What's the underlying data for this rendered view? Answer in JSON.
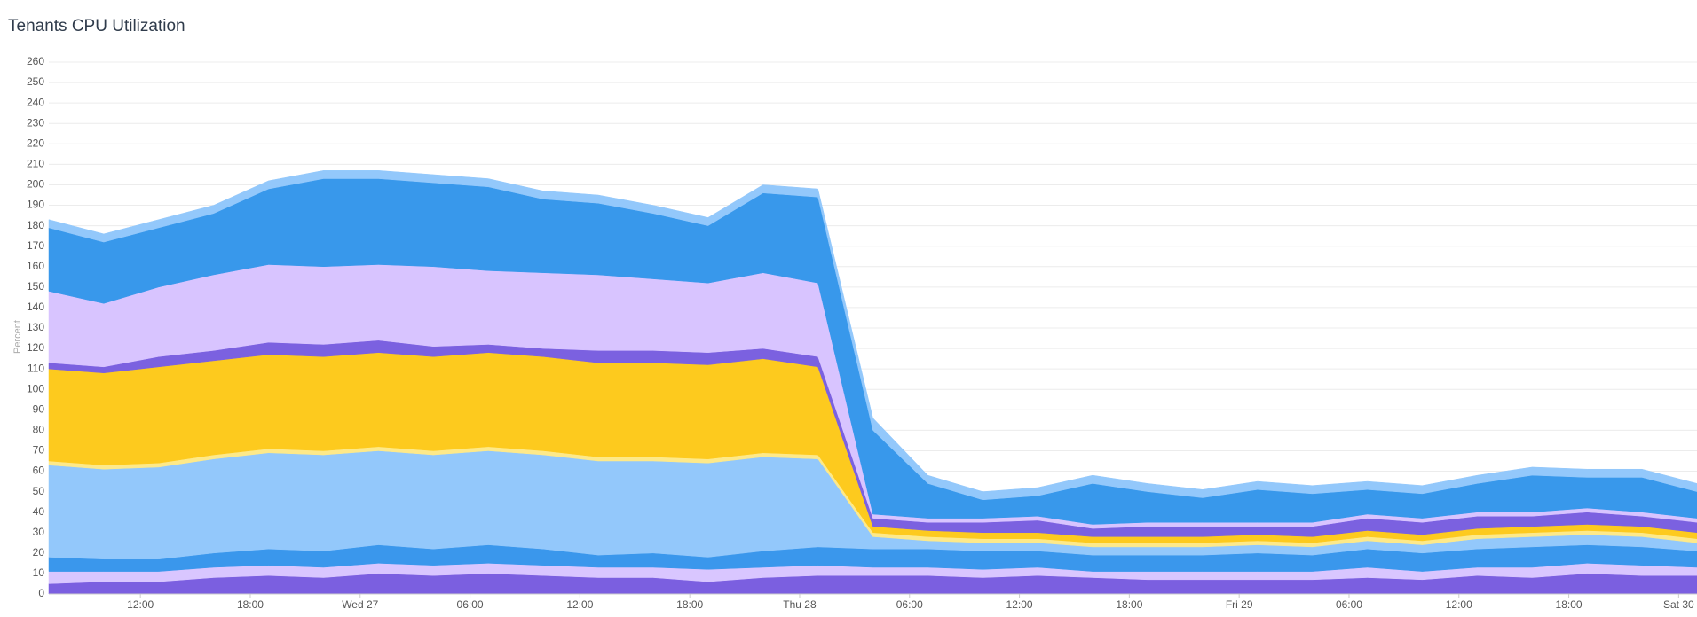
{
  "chart_data": {
    "type": "stacked_area",
    "title": "Tenants CPU Utilization",
    "y_label": "Percent",
    "x": [
      -17,
      -14,
      -11,
      -8,
      -5,
      -2,
      1,
      4,
      7,
      10,
      13,
      16,
      19,
      22,
      25,
      28,
      31,
      34,
      37,
      40,
      43,
      46,
      49,
      52,
      55,
      58,
      61,
      64,
      67,
      70,
      73
    ],
    "xlim": [
      -17,
      73
    ],
    "xticks": [
      {
        "value": -12,
        "label": "12:00"
      },
      {
        "value": -6,
        "label": "18:00"
      },
      {
        "value": 0,
        "label": "Wed 27"
      },
      {
        "value": 6,
        "label": "06:00"
      },
      {
        "value": 12,
        "label": "12:00"
      },
      {
        "value": 18,
        "label": "18:00"
      },
      {
        "value": 24,
        "label": "Thu 28"
      },
      {
        "value": 30,
        "label": "06:00"
      },
      {
        "value": 36,
        "label": "12:00"
      },
      {
        "value": 42,
        "label": "18:00"
      },
      {
        "value": 48,
        "label": "Fri 29"
      },
      {
        "value": 54,
        "label": "06:00"
      },
      {
        "value": 60,
        "label": "12:00"
      },
      {
        "value": 66,
        "label": "18:00"
      },
      {
        "value": 72,
        "label": "Sat 30"
      }
    ],
    "ylim": [
      0,
      260
    ],
    "yticks": [
      0,
      10,
      20,
      30,
      40,
      50,
      60,
      70,
      80,
      90,
      100,
      110,
      120,
      130,
      140,
      150,
      160,
      170,
      180,
      190,
      200,
      210,
      220,
      230,
      240,
      250,
      260
    ],
    "grid": true,
    "series": [
      {
        "color": "#7b5fe0",
        "values": [
          5,
          6,
          6,
          8,
          9,
          8,
          10,
          9,
          10,
          9,
          8,
          8,
          6,
          8,
          9,
          9,
          9,
          8,
          9,
          8,
          7,
          7,
          7,
          7,
          8,
          7,
          9,
          8,
          10,
          9,
          9
        ]
      },
      {
        "color": "#d9c6ff",
        "values": [
          6,
          5,
          5,
          5,
          5,
          5,
          5,
          5,
          5,
          5,
          5,
          5,
          6,
          5,
          5,
          4,
          4,
          4,
          4,
          3,
          4,
          4,
          4,
          4,
          5,
          4,
          4,
          5,
          5,
          5,
          4
        ]
      },
      {
        "color": "#3a97ec",
        "values": [
          7,
          6,
          6,
          7,
          8,
          8,
          9,
          8,
          9,
          8,
          6,
          7,
          6,
          8,
          9,
          9,
          9,
          9,
          8,
          8,
          8,
          8,
          9,
          8,
          9,
          9,
          9,
          10,
          9,
          9,
          8
        ]
      },
      {
        "color": "#93c8fb",
        "values": [
          45,
          44,
          45,
          46,
          47,
          47,
          46,
          46,
          46,
          46,
          46,
          45,
          46,
          46,
          43,
          6,
          4,
          4,
          4,
          4,
          4,
          4,
          4,
          4,
          4,
          4,
          5,
          5,
          5,
          5,
          4
        ]
      },
      {
        "color": "#fde98a",
        "values": [
          2,
          2,
          2,
          2,
          2,
          2,
          2,
          2,
          2,
          2,
          2,
          2,
          2,
          2,
          2,
          2,
          2,
          2,
          2,
          2,
          2,
          2,
          2,
          2,
          2,
          2,
          2,
          2,
          2,
          2,
          2
        ]
      },
      {
        "color": "#fdca1e",
        "values": [
          45,
          45,
          47,
          46,
          46,
          46,
          46,
          46,
          46,
          46,
          46,
          46,
          46,
          46,
          43,
          3,
          3,
          3,
          3,
          3,
          3,
          3,
          3,
          3,
          3,
          3,
          3,
          3,
          3,
          3,
          3
        ]
      },
      {
        "color": "#7b61e0",
        "values": [
          3,
          3,
          5,
          5,
          6,
          6,
          6,
          5,
          4,
          4,
          6,
          6,
          6,
          5,
          5,
          4,
          4,
          5,
          6,
          4,
          5,
          5,
          4,
          5,
          6,
          6,
          6,
          5,
          6,
          5,
          5
        ]
      },
      {
        "color": "#d8c4ff",
        "values": [
          35,
          31,
          34,
          37,
          38,
          38,
          37,
          39,
          36,
          37,
          37,
          35,
          34,
          37,
          36,
          2,
          2,
          2,
          2,
          2,
          2,
          2,
          2,
          2,
          2,
          2,
          2,
          2,
          2,
          2,
          2
        ]
      },
      {
        "color": "#3898eb",
        "values": [
          31,
          30,
          29,
          30,
          37,
          43,
          42,
          41,
          41,
          36,
          35,
          32,
          28,
          39,
          42,
          41,
          17,
          9,
          10,
          20,
          15,
          12,
          16,
          14,
          12,
          12,
          14,
          18,
          15,
          17,
          13
        ]
      },
      {
        "color": "#93c8fb",
        "values": [
          4,
          4,
          4,
          4,
          4,
          4,
          4,
          4,
          4,
          4,
          4,
          4,
          4,
          4,
          4,
          6,
          4,
          4,
          4,
          4,
          4,
          4,
          4,
          4,
          4,
          4,
          4,
          4,
          4,
          4,
          4
        ]
      }
    ]
  }
}
